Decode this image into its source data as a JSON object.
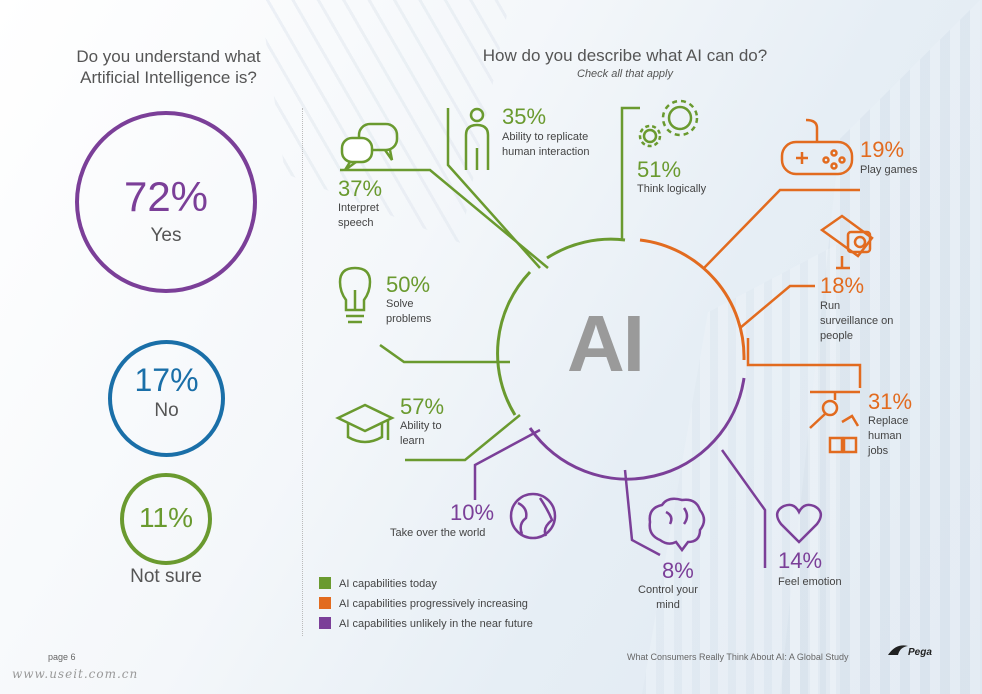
{
  "left": {
    "question": "Do you understand what Artificial Intelligence is?",
    "answers": [
      {
        "pct": "72%",
        "label": "Yes",
        "color": "#7b3f98"
      },
      {
        "pct": "17%",
        "label": "No",
        "color": "#1a6fa8"
      },
      {
        "pct": "11%",
        "label": "Not sure",
        "color": "#6a9a2f"
      }
    ]
  },
  "right": {
    "question": "How do you describe what AI can do?",
    "subtitle": "Check all that apply",
    "center_label": "AI",
    "items": [
      {
        "pct": "37%",
        "label": "Interpret speech",
        "category": "today",
        "icon": "speech-bubbles-icon"
      },
      {
        "pct": "35%",
        "label": "Ability to replicate human interaction",
        "category": "today",
        "icon": "person-icon"
      },
      {
        "pct": "51%",
        "label": "Think logically",
        "category": "today",
        "icon": "gears-icon"
      },
      {
        "pct": "50%",
        "label": "Solve problems",
        "category": "today",
        "icon": "lightbulb-icon"
      },
      {
        "pct": "57%",
        "label": "Ability to learn",
        "category": "today",
        "icon": "graduation-cap-icon"
      },
      {
        "pct": "19%",
        "label": "Play games",
        "category": "increasing",
        "icon": "gamepad-icon"
      },
      {
        "pct": "18%",
        "label": "Run surveillance on people",
        "category": "increasing",
        "icon": "camera-icon"
      },
      {
        "pct": "31%",
        "label": "Replace human jobs",
        "category": "increasing",
        "icon": "robot-arm-icon"
      },
      {
        "pct": "10%",
        "label": "Take over the world",
        "category": "unlikely",
        "icon": "globe-icon"
      },
      {
        "pct": "8%",
        "label": "Control your mind",
        "category": "unlikely",
        "icon": "brain-icon"
      },
      {
        "pct": "14%",
        "label": "Feel emotion",
        "category": "unlikely",
        "icon": "heart-icon"
      }
    ],
    "legend": [
      {
        "label": "AI capabilities today",
        "color": "#6a9a2f"
      },
      {
        "label": "AI capabilities progressively increasing",
        "color": "#e26b1f"
      },
      {
        "label": "AI capabilities unlikely in the near future",
        "color": "#7b3f98"
      }
    ]
  },
  "footer": {
    "page": "page 6",
    "title": "What Consumers Really Think About AI: A Global Study",
    "logo": "Pega",
    "watermark": "www.useit.com.cn"
  }
}
